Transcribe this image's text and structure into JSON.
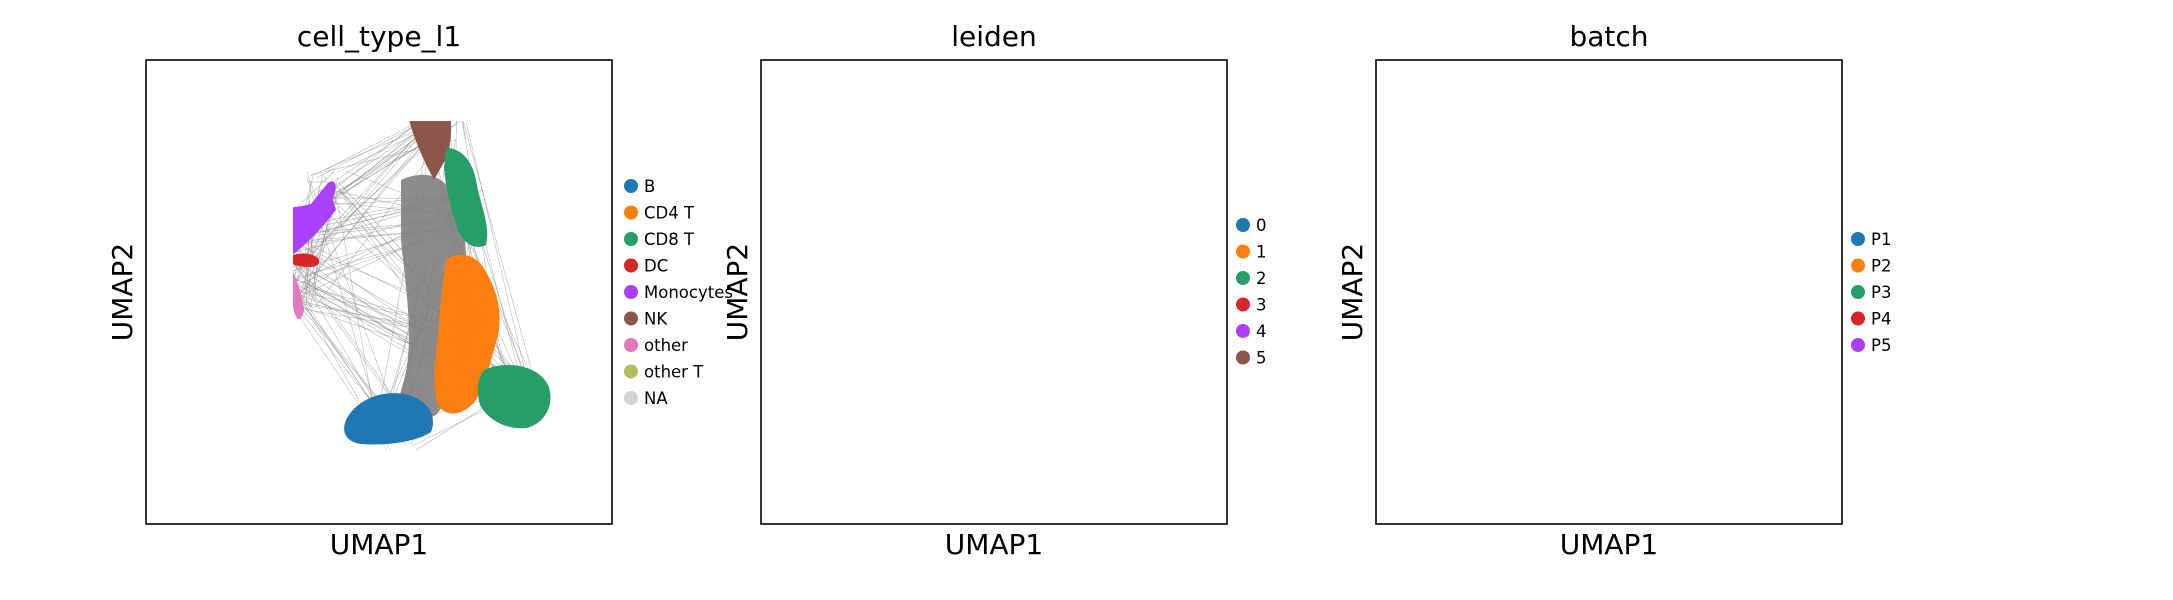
{
  "chart_data": [
    {
      "type": "scatter",
      "title": "cell_type_l1",
      "xlabel": "UMAP1",
      "ylabel": "UMAP2",
      "background_color": "#808080",
      "series": [
        {
          "name": "B",
          "color": "#1f77b4"
        },
        {
          "name": "CD4 T",
          "color": "#ff7f0e"
        },
        {
          "name": "CD8 T",
          "color": "#279e68"
        },
        {
          "name": "DC",
          "color": "#d62728"
        },
        {
          "name": "Monocytes",
          "color": "#aa40fc"
        },
        {
          "name": "NK",
          "color": "#8c564b"
        },
        {
          "name": "other",
          "color": "#e377c2"
        },
        {
          "name": "other T",
          "color": "#b5bd61"
        },
        {
          "name": "NA",
          "color": "#d3d3d3"
        }
      ]
    },
    {
      "type": "scatter",
      "title": "leiden",
      "xlabel": "UMAP1",
      "ylabel": "UMAP2",
      "background_color": "#808080",
      "series": [
        {
          "name": "0",
          "color": "#1f77b4"
        },
        {
          "name": "1",
          "color": "#ff7f0e"
        },
        {
          "name": "2",
          "color": "#279e68"
        },
        {
          "name": "3",
          "color": "#d62728"
        },
        {
          "name": "4",
          "color": "#aa40fc"
        },
        {
          "name": "5",
          "color": "#8c564b"
        }
      ]
    },
    {
      "type": "scatter",
      "title": "batch",
      "xlabel": "UMAP1",
      "ylabel": "UMAP2",
      "background_color": "#808080",
      "series": [
        {
          "name": "P1",
          "color": "#1f77b4"
        },
        {
          "name": "P2",
          "color": "#ff7f0e"
        },
        {
          "name": "P3",
          "color": "#279e68"
        },
        {
          "name": "P4",
          "color": "#d62728"
        },
        {
          "name": "P5",
          "color": "#aa40fc"
        }
      ]
    }
  ]
}
